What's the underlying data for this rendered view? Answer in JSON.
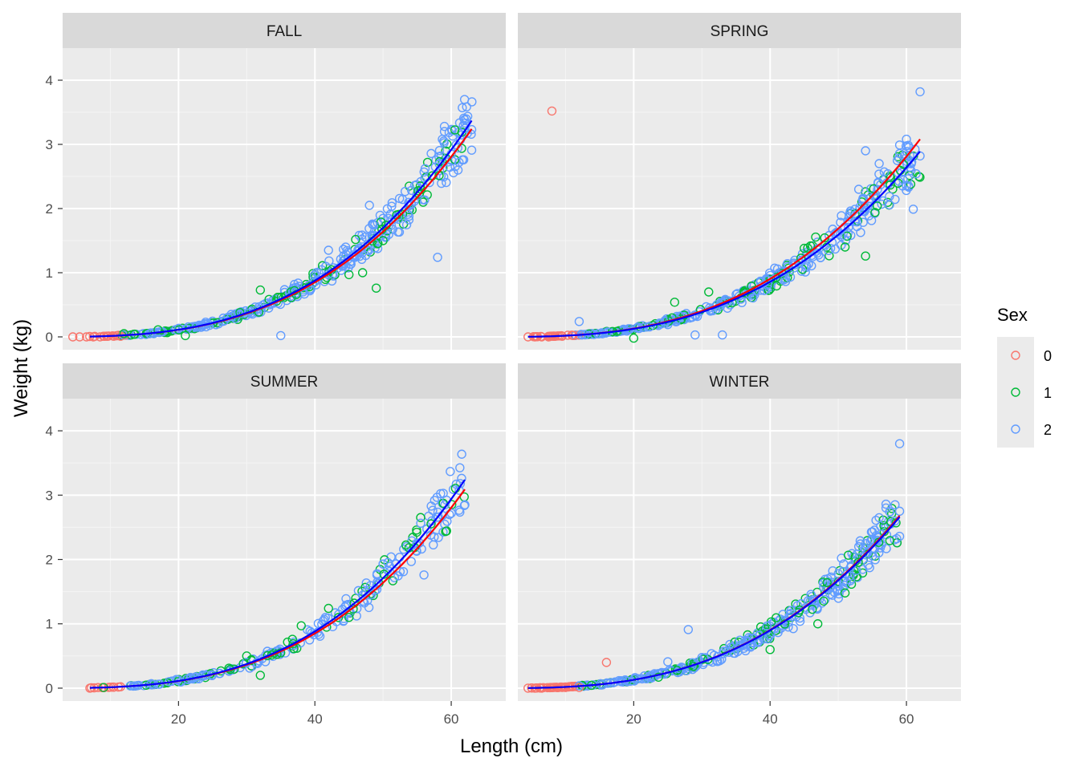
{
  "chart_data": {
    "type": "scatter",
    "xlabel": "Length (cm)",
    "ylabel": "Weight (kg)",
    "xlim": [
      3,
      68
    ],
    "ylim": [
      -0.2,
      4.5
    ],
    "x_ticks": [
      20,
      40,
      60
    ],
    "y_ticks": [
      0,
      1,
      2,
      3,
      4
    ],
    "grid": true,
    "legend": {
      "title": "Sex",
      "position": "right",
      "entries": [
        {
          "label": "0",
          "color": "#F8766D"
        },
        {
          "label": "1",
          "color": "#00BA38"
        },
        {
          "label": "2",
          "color": "#619CFF"
        }
      ]
    },
    "fit_line_colors": [
      "#FF0000",
      "#0000FF"
    ],
    "panels": [
      {
        "title": "FALL",
        "fit_lines": [
          {
            "color": "#FF0000",
            "points": [
              [
                7,
                0.005
              ],
              [
                15,
                0.048
              ],
              [
                25,
                0.21
              ],
              [
                35,
                0.59
              ],
              [
                45,
                1.26
              ],
              [
                55,
                2.25
              ],
              [
                63,
                3.24
              ]
            ]
          },
          {
            "color": "#0000FF",
            "points": [
              [
                7,
                0.005
              ],
              [
                15,
                0.05
              ],
              [
                25,
                0.22
              ],
              [
                35,
                0.61
              ],
              [
                45,
                1.31
              ],
              [
                55,
                2.34
              ],
              [
                63,
                3.37
              ]
            ]
          }
        ],
        "points": [
          {
            "x": 4.5,
            "y": 0.0,
            "sex": "0"
          },
          {
            "x": 5.5,
            "y": 0.0,
            "sex": "0"
          },
          {
            "x": 6.5,
            "y": 0.0,
            "sex": "0"
          },
          {
            "x": 7.5,
            "y": 0.0,
            "sex": "0"
          },
          {
            "x": 8.5,
            "y": 0.0,
            "sex": "0"
          },
          {
            "x": 9.5,
            "y": 0.01,
            "sex": "0"
          },
          {
            "x": 10.5,
            "y": 0.01,
            "sex": "0"
          },
          {
            "x": 11.5,
            "y": 0.01,
            "sex": "0"
          },
          {
            "x": 12,
            "y": 0.05,
            "sex": "1"
          },
          {
            "x": 17,
            "y": 0.11,
            "sex": "1"
          },
          {
            "x": 21,
            "y": 0.02,
            "sex": "1"
          },
          {
            "x": 32,
            "y": 0.73,
            "sex": "1"
          },
          {
            "x": 37,
            "y": 0.72,
            "sex": "1"
          },
          {
            "x": 45,
            "y": 0.97,
            "sex": "1"
          },
          {
            "x": 47,
            "y": 1.0,
            "sex": "1"
          },
          {
            "x": 49,
            "y": 0.76,
            "sex": "1"
          },
          {
            "x": 50,
            "y": 1.5,
            "sex": "1"
          },
          {
            "x": 52,
            "y": 1.9,
            "sex": "1"
          },
          {
            "x": 35,
            "y": 0.02,
            "sex": "2"
          },
          {
            "x": 42,
            "y": 1.35,
            "sex": "2"
          },
          {
            "x": 58,
            "y": 1.24,
            "sex": "2"
          },
          {
            "x": 59,
            "y": 3.28,
            "sex": "2"
          },
          {
            "x": 59,
            "y": 3.2,
            "sex": "2"
          },
          {
            "x": 62,
            "y": 3.25,
            "sex": "2"
          },
          {
            "x": 63,
            "y": 3.23,
            "sex": "2"
          },
          {
            "x": 63,
            "y": 2.91,
            "sex": "2"
          },
          {
            "x": 61,
            "y": 2.6,
            "sex": "2"
          },
          {
            "x": 60,
            "y": 2.85,
            "sex": "2"
          },
          {
            "x": 48,
            "y": 2.05,
            "sex": "2"
          },
          {
            "x": 44,
            "y": 1.1,
            "sex": "2"
          }
        ]
      },
      {
        "title": "SPRING",
        "fit_lines": [
          {
            "color": "#FF0000",
            "points": [
              [
                4.5,
                0.002
              ],
              [
                15,
                0.05
              ],
              [
                25,
                0.22
              ],
              [
                35,
                0.6
              ],
              [
                45,
                1.27
              ],
              [
                55,
                2.24
              ],
              [
                62,
                3.08
              ]
            ]
          },
          {
            "color": "#0000FF",
            "points": [
              [
                4.5,
                0.002
              ],
              [
                15,
                0.045
              ],
              [
                25,
                0.2
              ],
              [
                35,
                0.55
              ],
              [
                45,
                1.18
              ],
              [
                55,
                2.1
              ],
              [
                62,
                2.89
              ]
            ]
          }
        ],
        "points": [
          {
            "x": 4.5,
            "y": 0.0,
            "sex": "0"
          },
          {
            "x": 5.5,
            "y": 0.0,
            "sex": "0"
          },
          {
            "x": 6.5,
            "y": 0.0,
            "sex": "0"
          },
          {
            "x": 7.5,
            "y": 0.0,
            "sex": "0"
          },
          {
            "x": 8.5,
            "y": 0.01,
            "sex": "0"
          },
          {
            "x": 9.5,
            "y": 0.01,
            "sex": "0"
          },
          {
            "x": 8,
            "y": 3.52,
            "sex": "0"
          },
          {
            "x": 20,
            "y": -0.02,
            "sex": "1"
          },
          {
            "x": 26,
            "y": 0.54,
            "sex": "1"
          },
          {
            "x": 31,
            "y": 0.7,
            "sex": "1"
          },
          {
            "x": 45,
            "y": 1.38,
            "sex": "1"
          },
          {
            "x": 54,
            "y": 1.26,
            "sex": "1"
          },
          {
            "x": 51,
            "y": 1.4,
            "sex": "1"
          },
          {
            "x": 12,
            "y": 0.24,
            "sex": "2"
          },
          {
            "x": 29,
            "y": 0.03,
            "sex": "2"
          },
          {
            "x": 33,
            "y": 0.03,
            "sex": "2"
          },
          {
            "x": 62,
            "y": 3.82,
            "sex": "2"
          },
          {
            "x": 54,
            "y": 2.9,
            "sex": "2"
          },
          {
            "x": 60,
            "y": 3.08,
            "sex": "2"
          },
          {
            "x": 59,
            "y": 2.99,
            "sex": "2"
          },
          {
            "x": 61,
            "y": 1.99,
            "sex": "2"
          },
          {
            "x": 62,
            "y": 2.82,
            "sex": "2"
          },
          {
            "x": 60,
            "y": 2.36,
            "sex": "2"
          },
          {
            "x": 56,
            "y": 2.7,
            "sex": "2"
          },
          {
            "x": 53,
            "y": 2.3,
            "sex": "2"
          }
        ]
      },
      {
        "title": "SUMMER",
        "fit_lines": [
          {
            "color": "#FF0000",
            "points": [
              [
                7,
                0.005
              ],
              [
                15,
                0.05
              ],
              [
                25,
                0.21
              ],
              [
                35,
                0.58
              ],
              [
                45,
                1.24
              ],
              [
                55,
                2.2
              ],
              [
                62,
                3.09
              ]
            ]
          },
          {
            "color": "#0000FF",
            "points": [
              [
                7,
                0.005
              ],
              [
                15,
                0.05
              ],
              [
                25,
                0.22
              ],
              [
                35,
                0.61
              ],
              [
                45,
                1.3
              ],
              [
                55,
                2.31
              ],
              [
                62,
                3.24
              ]
            ]
          }
        ],
        "points": [
          {
            "x": 7,
            "y": 0.0,
            "sex": "0"
          },
          {
            "x": 9,
            "y": 0.01,
            "sex": "1"
          },
          {
            "x": 30,
            "y": 0.5,
            "sex": "1"
          },
          {
            "x": 32,
            "y": 0.2,
            "sex": "1"
          },
          {
            "x": 38,
            "y": 0.97,
            "sex": "1"
          },
          {
            "x": 42,
            "y": 1.24,
            "sex": "1"
          },
          {
            "x": 45,
            "y": 1.1,
            "sex": "1"
          },
          {
            "x": 55,
            "y": 2.25,
            "sex": "2"
          },
          {
            "x": 56,
            "y": 1.76,
            "sex": "2"
          },
          {
            "x": 57,
            "y": 2.38,
            "sex": "2"
          },
          {
            "x": 62,
            "y": 2.85,
            "sex": "2"
          },
          {
            "x": 50,
            "y": 1.93,
            "sex": "2"
          },
          {
            "x": 48,
            "y": 1.52,
            "sex": "2"
          }
        ]
      },
      {
        "title": "WINTER",
        "fit_lines": [
          {
            "color": "#FF0000",
            "points": [
              [
                4.5,
                0.002
              ],
              [
                15,
                0.05
              ],
              [
                25,
                0.21
              ],
              [
                35,
                0.58
              ],
              [
                45,
                1.24
              ],
              [
                55,
                2.2
              ],
              [
                59,
                2.68
              ]
            ]
          },
          {
            "color": "#0000FF",
            "points": [
              [
                4.5,
                0.002
              ],
              [
                15,
                0.05
              ],
              [
                25,
                0.21
              ],
              [
                35,
                0.58
              ],
              [
                45,
                1.23
              ],
              [
                55,
                2.19
              ],
              [
                59,
                2.66
              ]
            ]
          }
        ],
        "points": [
          {
            "x": 4.5,
            "y": 0.0,
            "sex": "0"
          },
          {
            "x": 5.5,
            "y": 0.0,
            "sex": "0"
          },
          {
            "x": 6.5,
            "y": 0.0,
            "sex": "0"
          },
          {
            "x": 8,
            "y": 0.01,
            "sex": "0"
          },
          {
            "x": 10,
            "y": 0.01,
            "sex": "0"
          },
          {
            "x": 12,
            "y": 0.01,
            "sex": "0"
          },
          {
            "x": 16,
            "y": 0.4,
            "sex": "0"
          },
          {
            "x": 40,
            "y": 0.6,
            "sex": "1"
          },
          {
            "x": 47,
            "y": 1.0,
            "sex": "1"
          },
          {
            "x": 51,
            "y": 1.48,
            "sex": "1"
          },
          {
            "x": 25,
            "y": 0.41,
            "sex": "2"
          },
          {
            "x": 28,
            "y": 0.91,
            "sex": "2"
          },
          {
            "x": 59,
            "y": 3.8,
            "sex": "2"
          },
          {
            "x": 57,
            "y": 2.86,
            "sex": "2"
          },
          {
            "x": 57,
            "y": 2.8,
            "sex": "2"
          },
          {
            "x": 59,
            "y": 2.75,
            "sex": "2"
          },
          {
            "x": 59,
            "y": 2.36,
            "sex": "2"
          },
          {
            "x": 56,
            "y": 2.65,
            "sex": "2"
          },
          {
            "x": 55,
            "y": 2.43,
            "sex": "2"
          },
          {
            "x": 53,
            "y": 2.2,
            "sex": "2"
          },
          {
            "x": 50,
            "y": 1.78,
            "sex": "2"
          }
        ]
      }
    ]
  }
}
